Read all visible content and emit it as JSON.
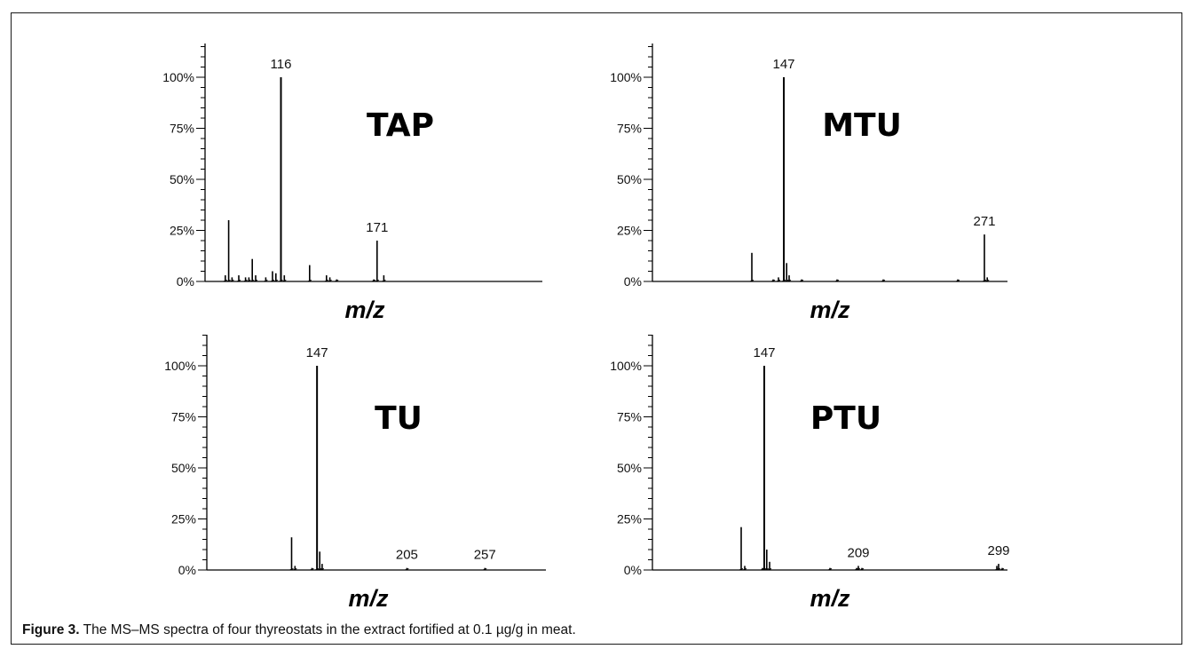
{
  "caption": {
    "figure_label": "Figure 3.",
    "text": " The MS–MS spectra of four thyreostats in the extract fortified at 0.1 µg/g in meat."
  },
  "chart_data": [
    {
      "type": "bar",
      "title": "TAP",
      "xlabel": "m/z",
      "ylabel": "",
      "ylim": [
        0,
        100
      ],
      "yticks": [
        "0%",
        "25%",
        "50%",
        "75%",
        "100%"
      ],
      "grid": false,
      "peaks": [
        {
          "x": 0.07,
          "y": 30
        },
        {
          "x": 0.06,
          "y": 3
        },
        {
          "x": 0.08,
          "y": 2
        },
        {
          "x": 0.1,
          "y": 3
        },
        {
          "x": 0.12,
          "y": 2
        },
        {
          "x": 0.13,
          "y": 2
        },
        {
          "x": 0.14,
          "y": 11
        },
        {
          "x": 0.15,
          "y": 3
        },
        {
          "x": 0.18,
          "y": 2
        },
        {
          "x": 0.2,
          "y": 5
        },
        {
          "x": 0.21,
          "y": 4
        },
        {
          "x": 0.225,
          "y": 100
        },
        {
          "x": 0.235,
          "y": 3
        },
        {
          "x": 0.31,
          "y": 8
        },
        {
          "x": 0.36,
          "y": 3
        },
        {
          "x": 0.37,
          "y": 2
        },
        {
          "x": 0.39,
          "y": 1
        },
        {
          "x": 0.5,
          "y": 1
        },
        {
          "x": 0.51,
          "y": 20
        },
        {
          "x": 0.53,
          "y": 3
        }
      ],
      "annotations": [
        {
          "label": "116",
          "x": 0.225,
          "y": 100
        },
        {
          "label": "171",
          "x": 0.51,
          "y": 20
        }
      ]
    },
    {
      "type": "bar",
      "title": "MTU",
      "xlabel": "m/z",
      "ylabel": "",
      "ylim": [
        0,
        100
      ],
      "yticks": [
        "0%",
        "25%",
        "50%",
        "75%",
        "100%"
      ],
      "grid": false,
      "peaks": [
        {
          "x": 0.28,
          "y": 14
        },
        {
          "x": 0.34,
          "y": 1
        },
        {
          "x": 0.355,
          "y": 2
        },
        {
          "x": 0.37,
          "y": 100
        },
        {
          "x": 0.378,
          "y": 9
        },
        {
          "x": 0.385,
          "y": 3
        },
        {
          "x": 0.42,
          "y": 1
        },
        {
          "x": 0.52,
          "y": 1
        },
        {
          "x": 0.65,
          "y": 1
        },
        {
          "x": 0.86,
          "y": 1
        },
        {
          "x": 0.935,
          "y": 23
        },
        {
          "x": 0.943,
          "y": 2
        }
      ],
      "annotations": [
        {
          "label": "147",
          "x": 0.37,
          "y": 100
        },
        {
          "label": "271",
          "x": 0.935,
          "y": 23
        }
      ]
    },
    {
      "type": "bar",
      "title": "TU",
      "xlabel": "m/z",
      "ylabel": "",
      "ylim": [
        0,
        100
      ],
      "yticks": [
        "0%",
        "25%",
        "50%",
        "75%",
        "100%"
      ],
      "grid": false,
      "peaks": [
        {
          "x": 0.25,
          "y": 16
        },
        {
          "x": 0.26,
          "y": 2
        },
        {
          "x": 0.31,
          "y": 1
        },
        {
          "x": 0.325,
          "y": 100
        },
        {
          "x": 0.333,
          "y": 9
        },
        {
          "x": 0.34,
          "y": 3
        },
        {
          "x": 0.59,
          "y": 1
        },
        {
          "x": 0.82,
          "y": 1
        }
      ],
      "annotations": [
        {
          "label": "147",
          "x": 0.325,
          "y": 100
        },
        {
          "label": "205",
          "x": 0.59,
          "y": 1
        },
        {
          "label": "257",
          "x": 0.82,
          "y": 1
        }
      ]
    },
    {
      "type": "bar",
      "title": "PTU",
      "xlabel": "m/z",
      "ylabel": "",
      "ylim": [
        0,
        100
      ],
      "yticks": [
        "0%",
        "25%",
        "50%",
        "75%",
        "100%"
      ],
      "grid": false,
      "peaks": [
        {
          "x": 0.25,
          "y": 21
        },
        {
          "x": 0.26,
          "y": 2
        },
        {
          "x": 0.31,
          "y": 1
        },
        {
          "x": 0.315,
          "y": 100
        },
        {
          "x": 0.322,
          "y": 10
        },
        {
          "x": 0.33,
          "y": 4
        },
        {
          "x": 0.5,
          "y": 1
        },
        {
          "x": 0.575,
          "y": 1
        },
        {
          "x": 0.58,
          "y": 2
        },
        {
          "x": 0.59,
          "y": 1
        },
        {
          "x": 0.97,
          "y": 2
        },
        {
          "x": 0.975,
          "y": 3
        },
        {
          "x": 0.985,
          "y": 1
        }
      ],
      "annotations": [
        {
          "label": "147",
          "x": 0.315,
          "y": 100
        },
        {
          "label": "209",
          "x": 0.58,
          "y": 2
        },
        {
          "label": "299",
          "x": 0.975,
          "y": 3
        }
      ]
    }
  ]
}
